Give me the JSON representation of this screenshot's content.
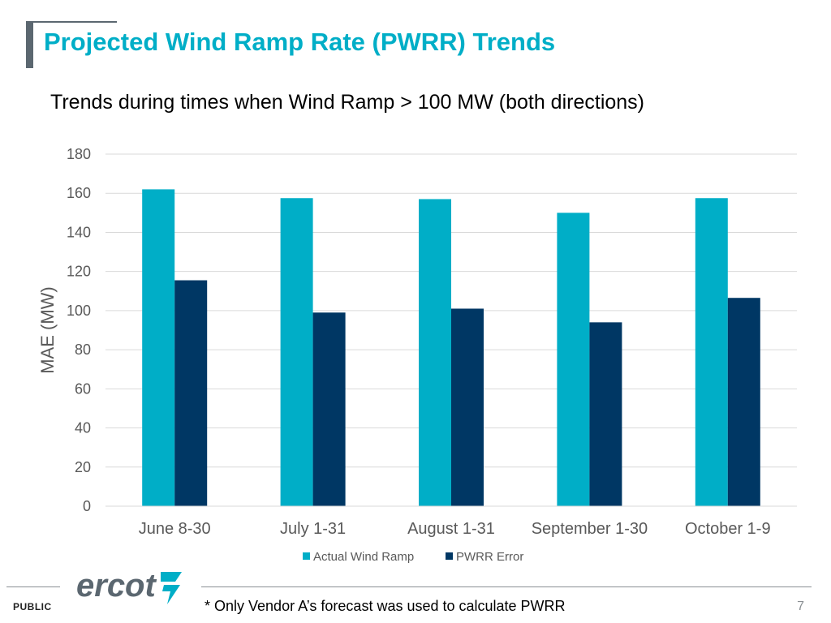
{
  "slide": {
    "title": "Projected Wind Ramp Rate (PWRR) Trends",
    "subtitle": "Trends during times when Wind Ramp > 100 MW (both directions)",
    "footnote": "* Only Vendor A’s forecast was used to calculate PWRR",
    "page_number": "7",
    "classification": "PUBLIC",
    "logo_text": "ercot"
  },
  "colors": {
    "title": "#00aec7",
    "actual": "#00aec7",
    "error": "#003764",
    "grid": "#d9d9d9",
    "axis_text": "#595959"
  },
  "chart_data": {
    "type": "bar",
    "title": "",
    "xlabel": "",
    "ylabel": "MAE (MW)",
    "ylim": [
      0,
      180
    ],
    "ytick_step": 20,
    "grid": true,
    "legend_position": "bottom",
    "categories": [
      "June 8-30",
      "July 1-31",
      "August 1-31",
      "September 1-30",
      "October 1-9"
    ],
    "series": [
      {
        "name": "Actual Wind Ramp",
        "values": [
          162,
          157.5,
          157,
          150,
          157.5
        ]
      },
      {
        "name": "PWRR Error",
        "values": [
          115.5,
          99,
          101,
          94,
          106.5
        ]
      }
    ]
  }
}
